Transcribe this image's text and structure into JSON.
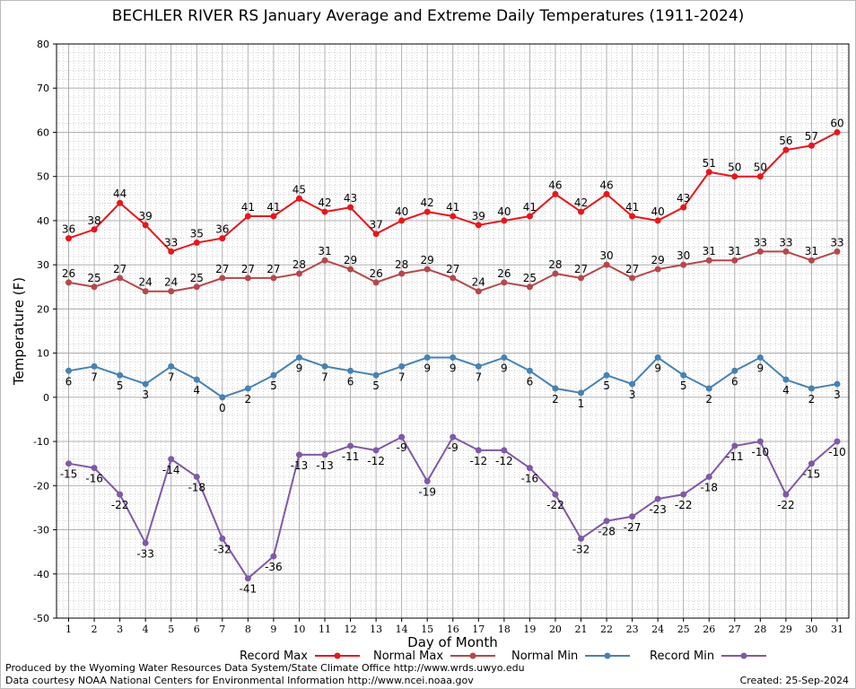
{
  "chart_data": {
    "type": "line",
    "title": "BECHLER RIVER RS January Average and Extreme Daily Temperatures (1911-2024)",
    "xlabel": "Day of Month",
    "ylabel": "Temperature (F)",
    "ylim": [
      -50,
      80
    ],
    "yticks": [
      "80",
      "70",
      "60",
      "50",
      "40",
      "30",
      "20",
      "10",
      "0",
      "-10",
      "-20",
      "-30",
      "-40",
      "-50"
    ],
    "categories": [
      "1",
      "2",
      "3",
      "4",
      "5",
      "6",
      "7",
      "8",
      "9",
      "10",
      "11",
      "12",
      "13",
      "14",
      "15",
      "16",
      "17",
      "18",
      "19",
      "20",
      "21",
      "22",
      "23",
      "24",
      "25",
      "26",
      "27",
      "28",
      "29",
      "30",
      "31"
    ],
    "grid": true,
    "legend_position": "bottom",
    "series": [
      {
        "name": "Record Max",
        "color": "#e8161b",
        "label_pos": "above",
        "values": [
          36,
          38,
          44,
          39,
          33,
          35,
          36,
          41,
          41,
          45,
          42,
          43,
          37,
          40,
          42,
          41,
          39,
          40,
          41,
          46,
          42,
          46,
          41,
          40,
          43,
          51,
          50,
          50,
          56,
          57,
          60
        ]
      },
      {
        "name": "Normal Max",
        "color": "#b5474b",
        "label_pos": "above",
        "values": [
          26,
          25,
          27,
          24,
          24,
          25,
          27,
          27,
          27,
          28,
          31,
          29,
          26,
          28,
          29,
          27,
          24,
          26,
          25,
          28,
          27,
          30,
          27,
          29,
          30,
          31,
          31,
          33,
          33,
          31,
          33
        ]
      },
      {
        "name": "Normal Min",
        "color": "#4682b4",
        "label_pos": "below",
        "values": [
          6,
          7,
          5,
          3,
          7,
          4,
          0,
          2,
          5,
          9,
          7,
          6,
          5,
          7,
          9,
          9,
          7,
          9,
          6,
          2,
          1,
          5,
          3,
          9,
          5,
          2,
          6,
          9,
          4,
          2,
          3
        ]
      },
      {
        "name": "Record Min",
        "color": "#8059a6",
        "label_pos": "below",
        "values": [
          -15,
          -16,
          -22,
          -33,
          -14,
          -18,
          -32,
          -41,
          -36,
          -13,
          -13,
          -11,
          -12,
          -9,
          -19,
          -9,
          -12,
          -12,
          -16,
          -22,
          -32,
          -28,
          -27,
          -23,
          -22,
          -18,
          -11,
          -10,
          -22,
          -15,
          -10
        ]
      }
    ]
  },
  "footer": {
    "produced_by": "Produced by the Wyoming Water Resources Data System/State Climate Office http://www.wrds.uwyo.edu",
    "data_courtesy": "Data courtesy NOAA National Centers for Environmental Information http://www.ncei.noaa.gov",
    "created": "Created:  25-Sep-2024"
  }
}
